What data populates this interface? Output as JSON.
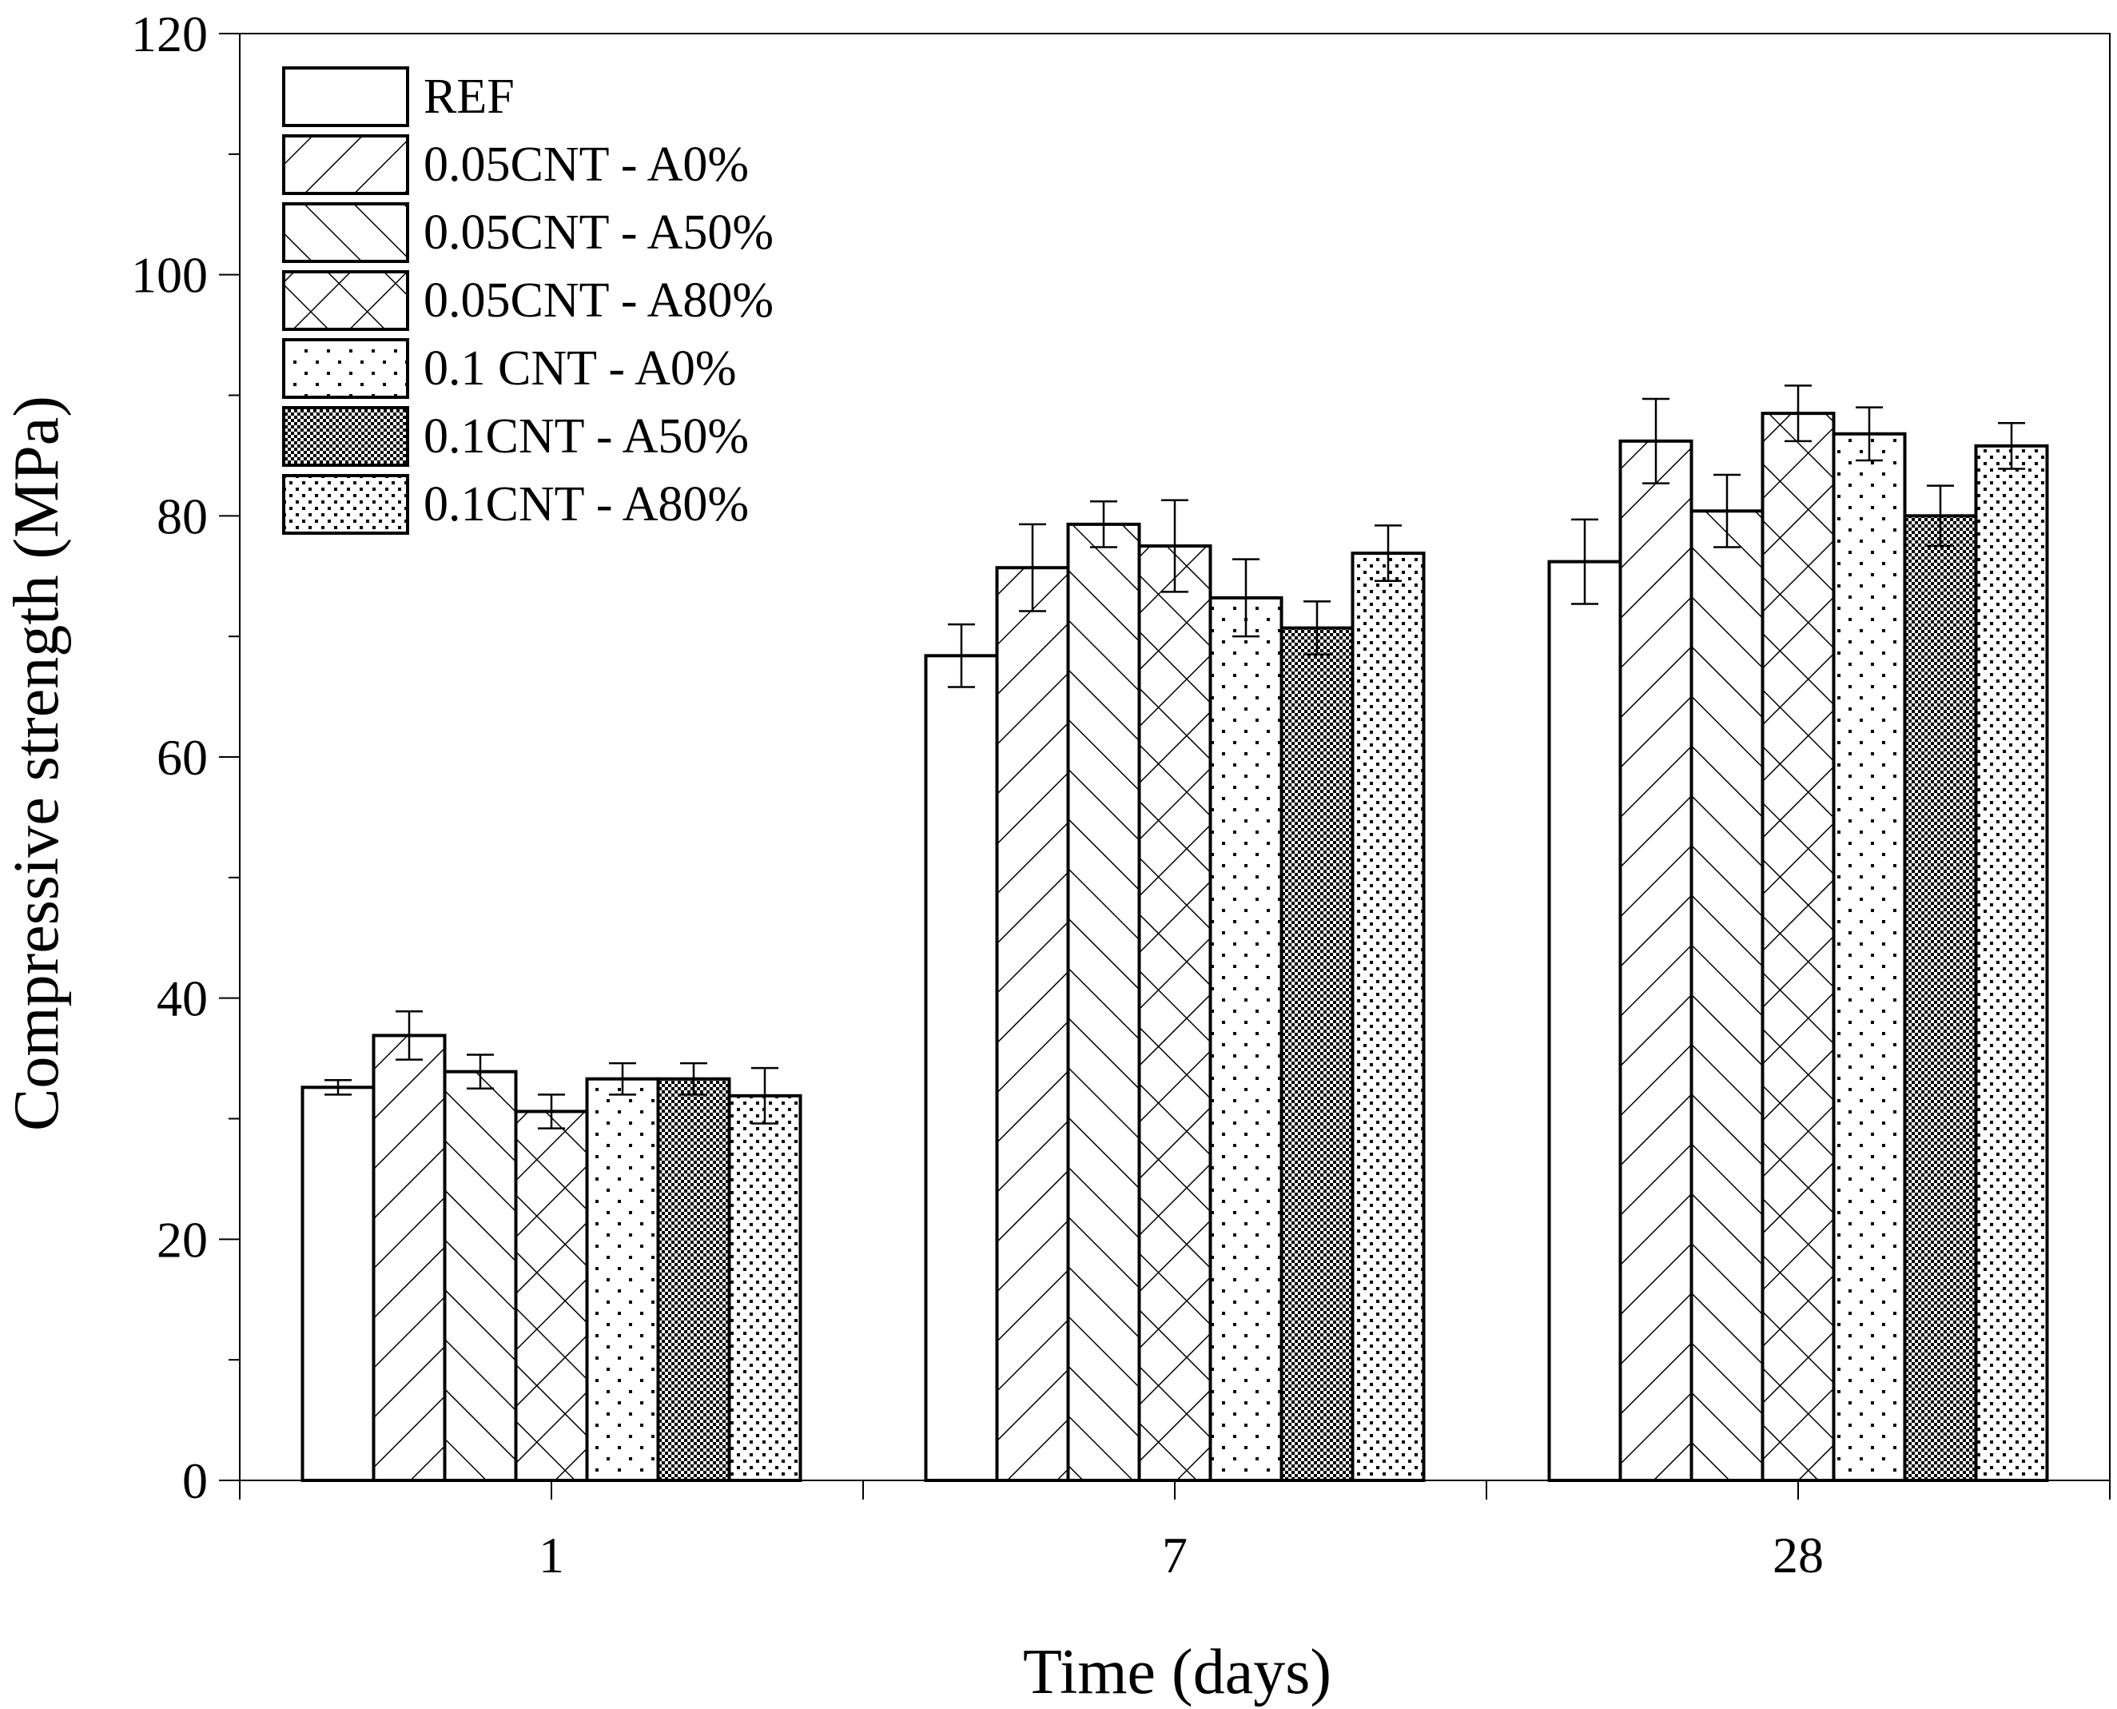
{
  "chart_data": {
    "type": "bar",
    "title": "",
    "xlabel": "Time (days)",
    "ylabel": "Compressive strength (MPa)",
    "ylim": [
      0,
      120
    ],
    "yticks": [
      0,
      20,
      40,
      60,
      80,
      100,
      120
    ],
    "categories": [
      "1",
      "7",
      "28"
    ],
    "grid": false,
    "legend_position": "top-left",
    "error_bars": true,
    "series": [
      {
        "name": "REF",
        "pattern": "empty",
        "values": [
          32.6,
          68.4,
          76.2
        ],
        "errors": [
          0.6,
          2.6,
          3.5
        ]
      },
      {
        "name": "0.05CNT - A0%",
        "pattern": "forward-diagonal",
        "values": [
          36.9,
          75.7,
          86.2
        ],
        "errors": [
          2.0,
          3.6,
          3.5
        ]
      },
      {
        "name": "0.05CNT - A50%",
        "pattern": "backward-diagonal",
        "values": [
          33.9,
          79.3,
          80.4
        ],
        "errors": [
          1.4,
          1.9,
          3.0
        ]
      },
      {
        "name": "0.05CNT - A80%",
        "pattern": "crosshatch",
        "values": [
          30.6,
          77.5,
          88.5
        ],
        "errors": [
          1.4,
          3.8,
          2.3
        ]
      },
      {
        "name": "0.1 CNT - A0%",
        "pattern": "sparse-dots",
        "values": [
          33.3,
          73.2,
          86.8
        ],
        "errors": [
          1.3,
          3.2,
          2.2
        ]
      },
      {
        "name": "0.1CNT - A50%",
        "pattern": "dense-dots",
        "values": [
          33.3,
          70.7,
          80.0
        ],
        "errors": [
          1.3,
          2.2,
          2.5
        ]
      },
      {
        "name": "0.1CNT - A80%",
        "pattern": "medium-dots",
        "values": [
          31.9,
          76.9,
          85.8
        ],
        "errors": [
          2.3,
          2.3,
          1.9
        ]
      }
    ],
    "colors": {
      "bar_fill": "#ffffff",
      "bar_stroke": "#000000",
      "text": "#000000"
    }
  }
}
